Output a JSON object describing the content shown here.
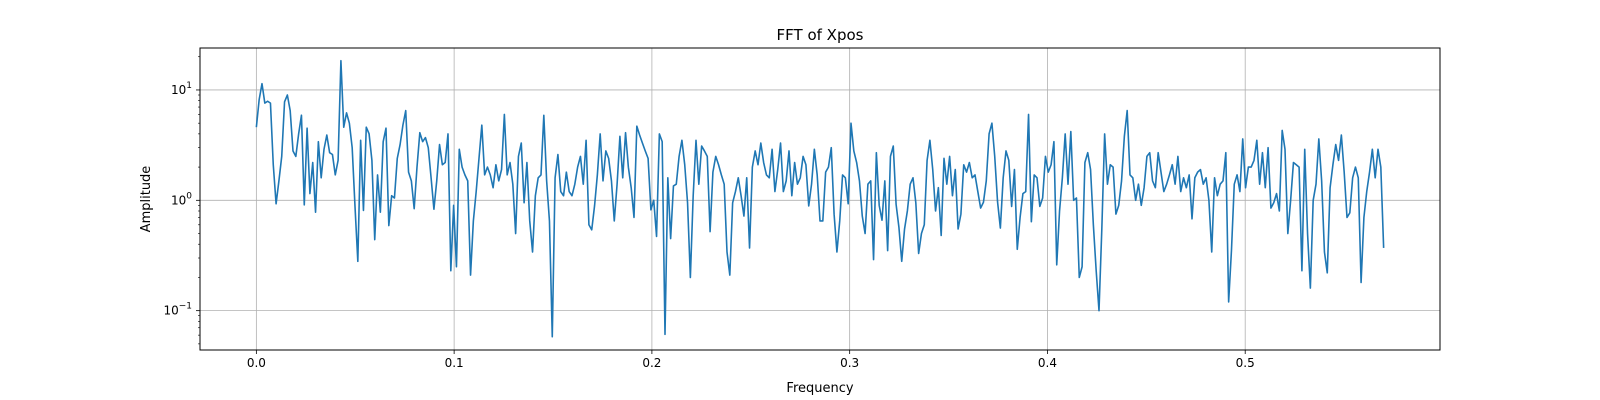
{
  "chart_data": {
    "type": "line",
    "title": "FFT of Xpos",
    "xlabel": "Frequency",
    "ylabel": "Amplitude",
    "xlim": [
      -0.0285,
      0.5985
    ],
    "ylim": [
      0.044,
      24
    ],
    "yscale": "log",
    "grid": true,
    "x_ticks": [
      {
        "value": 0.0,
        "label": "0.0"
      },
      {
        "value": 0.1,
        "label": "0.1"
      },
      {
        "value": 0.2,
        "label": "0.2"
      },
      {
        "value": 0.3,
        "label": "0.3"
      },
      {
        "value": 0.4,
        "label": "0.4"
      },
      {
        "value": 0.5,
        "label": "0.5"
      }
    ],
    "y_ticks": [
      {
        "value": 0.1,
        "base": "10",
        "exp": "−1"
      },
      {
        "value": 1,
        "base": "10",
        "exp": "0"
      },
      {
        "value": 10,
        "base": "10",
        "exp": "1"
      }
    ],
    "series": [
      {
        "color": "#1f77b4",
        "x_start": 0.0,
        "x_end": 0.57,
        "values": [
          4.6,
          8.2,
          11.4,
          7.6,
          7.9,
          7.6,
          2.1,
          0.93,
          1.5,
          2.5,
          7.8,
          9.0,
          6.5,
          2.8,
          2.5,
          4.0,
          5.9,
          0.91,
          4.5,
          1.15,
          2.2,
          0.78,
          3.4,
          1.6,
          2.9,
          3.9,
          2.7,
          2.6,
          1.7,
          2.3,
          18.4,
          4.6,
          6.2,
          5.0,
          3.0,
          0.88,
          0.28,
          3.5,
          0.81,
          4.6,
          4.0,
          2.3,
          0.44,
          1.7,
          0.78,
          3.4,
          4.5,
          0.59,
          1.1,
          1.05,
          2.4,
          3.2,
          4.8,
          6.5,
          1.8,
          1.5,
          0.84,
          2.0,
          4.1,
          3.4,
          3.7,
          3.0,
          1.6,
          0.83,
          1.5,
          3.2,
          2.1,
          2.2,
          4.0,
          0.23,
          0.9,
          0.25,
          2.9,
          2.0,
          1.7,
          1.5,
          0.21,
          0.65,
          1.2,
          2.4,
          4.8,
          1.7,
          2.0,
          1.7,
          1.3,
          2.1,
          1.5,
          1.9,
          6.0,
          1.7,
          2.2,
          1.4,
          0.5,
          2.5,
          3.3,
          0.95,
          2.2,
          0.65,
          0.34,
          1.1,
          1.6,
          1.7,
          5.9,
          1.5,
          0.65,
          0.058,
          1.6,
          2.6,
          1.2,
          1.1,
          1.8,
          1.2,
          1.1,
          1.4,
          2.0,
          2.5,
          1.4,
          3.5,
          0.6,
          0.54,
          0.89,
          1.7,
          4.0,
          1.5,
          2.8,
          2.4,
          1.5,
          0.65,
          1.4,
          3.8,
          1.6,
          4.1,
          2.0,
          1.3,
          0.7,
          4.7,
          3.9,
          3.3,
          2.8,
          2.4,
          0.82,
          1.0,
          0.47,
          4.0,
          3.4,
          0.061,
          1.6,
          0.45,
          1.35,
          1.4,
          2.5,
          3.5,
          2.1,
          0.95,
          0.2,
          1.1,
          3.5,
          1.4,
          3.1,
          2.8,
          2.5,
          0.52,
          1.8,
          2.5,
          2.1,
          1.7,
          1.4,
          0.34,
          0.21,
          0.95,
          1.2,
          1.6,
          1.1,
          0.72,
          1.6,
          0.37,
          2.0,
          2.8,
          2.1,
          3.3,
          2.2,
          1.7,
          1.6,
          2.9,
          1.2,
          1.9,
          3.3,
          1.2,
          1.5,
          2.8,
          1.1,
          2.2,
          1.4,
          1.6,
          2.5,
          2.1,
          0.89,
          1.4,
          2.9,
          1.7,
          0.65,
          0.65,
          1.8,
          2.0,
          3.0,
          0.75,
          0.34,
          0.65,
          1.7,
          1.6,
          0.93,
          5.0,
          2.8,
          2.2,
          1.5,
          0.72,
          0.5,
          1.4,
          1.5,
          0.29,
          2.7,
          0.9,
          0.66,
          1.5,
          0.35,
          2.5,
          3.1,
          0.92,
          0.57,
          0.28,
          0.55,
          0.8,
          1.4,
          1.6,
          0.95,
          0.33,
          0.5,
          0.6,
          2.3,
          3.5,
          1.9,
          0.8,
          1.3,
          0.48,
          2.4,
          1.4,
          2.5,
          1.1,
          1.9,
          0.55,
          0.75,
          2.1,
          1.8,
          2.2,
          1.6,
          1.7,
          1.2,
          0.85,
          0.96,
          1.5,
          4.0,
          5.0,
          2.5,
          0.97,
          0.56,
          1.6,
          2.8,
          2.3,
          0.88,
          1.9,
          0.36,
          0.7,
          1.15,
          1.2,
          6.0,
          0.64,
          1.7,
          1.6,
          0.88,
          1.05,
          2.5,
          1.8,
          2.1,
          3.4,
          0.26,
          0.8,
          1.6,
          4.0,
          1.4,
          4.2,
          1.0,
          1.05,
          0.2,
          0.25,
          2.2,
          2.7,
          1.9,
          0.6,
          0.23,
          0.1,
          0.55,
          4.0,
          1.4,
          2.1,
          2.0,
          0.75,
          0.9,
          1.5,
          3.8,
          6.5,
          1.7,
          1.6,
          1.0,
          1.4,
          0.9,
          1.3,
          2.5,
          2.7,
          1.5,
          1.3,
          2.7,
          1.8,
          1.2,
          1.4,
          1.7,
          2.1,
          1.4,
          2.5,
          1.2,
          1.6,
          1.3,
          1.7,
          0.68,
          1.6,
          1.8,
          1.9,
          1.4,
          1.6,
          1.0,
          0.34,
          1.6,
          1.1,
          1.4,
          1.5,
          2.7,
          0.12,
          0.35,
          1.4,
          1.7,
          1.2,
          3.6,
          1.3,
          2.0,
          2.0,
          2.3,
          3.5,
          1.4,
          2.7,
          1.3,
          3.0,
          0.85,
          0.95,
          1.15,
          0.8,
          4.3,
          2.9,
          0.5,
          1.0,
          2.2,
          2.1,
          2.0,
          0.23,
          2.9,
          0.5,
          0.16,
          1.0,
          1.4,
          3.6,
          1.5,
          0.34,
          0.22,
          1.3,
          2.1,
          3.2,
          2.3,
          3.9,
          1.8,
          0.7,
          0.77,
          1.6,
          2.0,
          1.6,
          0.18,
          0.7,
          1.2,
          1.8,
          2.9,
          1.6,
          2.9,
          2.0,
          0.37
        ]
      }
    ]
  }
}
